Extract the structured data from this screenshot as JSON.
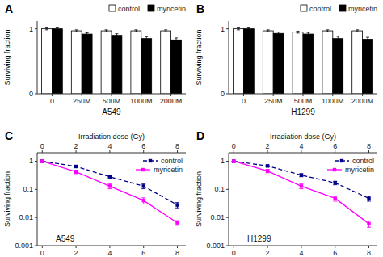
{
  "chart_data": [
    {
      "type": "bar",
      "title": "A",
      "categories": [
        "0",
        "25uM",
        "50uM",
        "100uM",
        "200uM"
      ],
      "series": [
        {
          "name": "control",
          "color": "white",
          "values": [
            1.0,
            0.97,
            0.97,
            0.97,
            0.97
          ],
          "errors": [
            0.015,
            0.015,
            0.015,
            0.015,
            0.015
          ]
        },
        {
          "name": "myricetin",
          "color": "black",
          "values": [
            1.0,
            0.92,
            0.9,
            0.85,
            0.83
          ],
          "errors": [
            0.015,
            0.02,
            0.025,
            0.03,
            0.03
          ]
        }
      ],
      "xlabel": "A549",
      "ylabel": "Surviving fraction",
      "ylim": [
        0,
        1.12
      ],
      "yticks": [
        0,
        1
      ],
      "legend": "upper right",
      "grid": false
    },
    {
      "type": "bar",
      "title": "B",
      "categories": [
        "0",
        "25uM",
        "50uM",
        "100uM",
        "200uM"
      ],
      "series": [
        {
          "name": "control",
          "color": "white",
          "values": [
            1.0,
            0.97,
            0.95,
            0.97,
            0.97
          ],
          "errors": [
            0.015,
            0.015,
            0.015,
            0.015,
            0.015
          ]
        },
        {
          "name": "myricetin",
          "color": "black",
          "values": [
            1.0,
            0.93,
            0.92,
            0.85,
            0.84
          ],
          "errors": [
            0.015,
            0.02,
            0.025,
            0.035,
            0.03
          ]
        }
      ],
      "xlabel": "H1299",
      "ylabel": "Surviving fraction",
      "ylim": [
        0,
        1.12
      ],
      "yticks": [
        0,
        1
      ],
      "legend": "upper right",
      "grid": false
    },
    {
      "type": "line",
      "title": "C",
      "x": [
        0,
        2,
        4,
        6,
        8
      ],
      "series": [
        {
          "name": "control",
          "color": "#00008B",
          "line_style": "dashed",
          "marker": "square",
          "values": [
            1.0,
            0.65,
            0.28,
            0.13,
            0.028
          ],
          "errors": [
            0.0,
            0.05,
            0.04,
            0.025,
            0.006
          ]
        },
        {
          "name": "myricetin",
          "color": "#FF00FF",
          "line_style": "solid",
          "marker": "square",
          "values": [
            1.0,
            0.42,
            0.13,
            0.04,
            0.0065
          ],
          "errors": [
            0.0,
            0.06,
            0.025,
            0.01,
            0.0012
          ]
        }
      ],
      "xlabel": "Irradiation dose (Gy)",
      "ylabel": "Surviving fraction",
      "xlim": [
        -0.3,
        8.5
      ],
      "xticks": [
        0,
        2,
        4,
        6,
        8
      ],
      "ylim": [
        0.001,
        2.0
      ],
      "yticks": [
        0.001,
        0.01,
        0.1,
        1
      ],
      "log": "y",
      "legend": "upper right",
      "grid": false,
      "annotations": [
        {
          "text": "A549",
          "x": 0.8,
          "y": 0.0014
        }
      ]
    },
    {
      "type": "line",
      "title": "D",
      "x": [
        0,
        2,
        4,
        6,
        8
      ],
      "series": [
        {
          "name": "control",
          "color": "#00008B",
          "line_style": "dashed",
          "marker": "square",
          "values": [
            1.0,
            0.68,
            0.32,
            0.17,
            0.048
          ],
          "errors": [
            0.0,
            0.05,
            0.04,
            0.025,
            0.01
          ]
        },
        {
          "name": "myricetin",
          "color": "#FF00FF",
          "line_style": "solid",
          "marker": "square",
          "values": [
            1.0,
            0.45,
            0.13,
            0.048,
            0.006
          ],
          "errors": [
            0.0,
            0.06,
            0.025,
            0.01,
            0.0015
          ]
        }
      ],
      "xlabel": "Irradiation dose (Gy)",
      "ylabel": "Surviving fraction",
      "xlim": [
        -0.3,
        8.5
      ],
      "xticks": [
        0,
        2,
        4,
        6,
        8
      ],
      "ylim": [
        0.001,
        2.0
      ],
      "yticks": [
        0.001,
        0.01,
        0.1,
        1
      ],
      "log": "y",
      "legend": "upper right",
      "grid": false,
      "annotations": [
        {
          "text": "H1299",
          "x": 0.8,
          "y": 0.0014
        }
      ]
    }
  ]
}
